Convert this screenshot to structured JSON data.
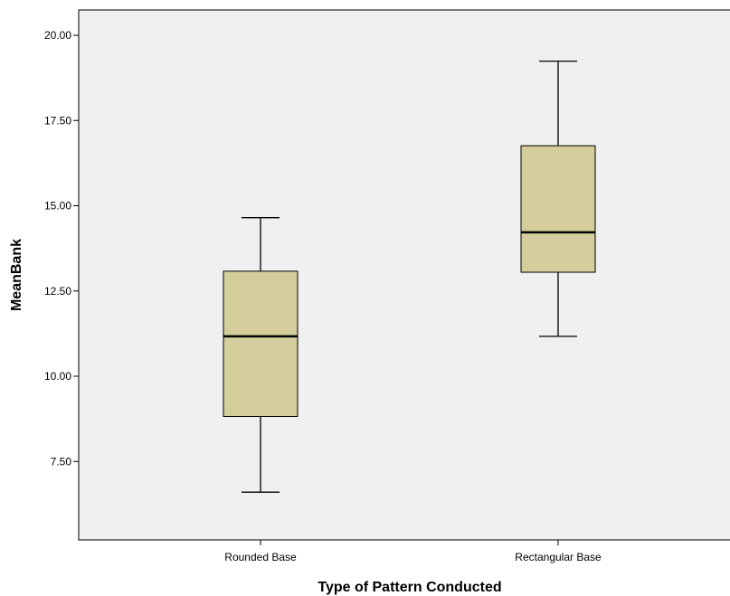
{
  "chart_data": {
    "type": "boxplot",
    "xlabel": "Type of Pattern Conducted",
    "ylabel": "MeanBank",
    "categories": [
      "Rounded Base",
      "Rectangular Base"
    ],
    "boxes": [
      {
        "category": "Rounded Base",
        "min": 6.6,
        "q1": 8.82,
        "median": 11.17,
        "q3": 13.08,
        "max": 14.65
      },
      {
        "category": "Rectangular Base",
        "min": 11.17,
        "q1": 13.05,
        "median": 14.22,
        "q3": 16.76,
        "max": 19.24
      }
    ],
    "yticks": [
      "7.50",
      "10.00",
      "12.50",
      "15.00",
      "17.50",
      "20.00"
    ],
    "ylim": [
      5.65,
      20.75
    ],
    "grid": false,
    "colors": {
      "plot_background": "#f0f0f0",
      "box_fill": "#d3ce9b",
      "stroke": "#000000"
    }
  }
}
